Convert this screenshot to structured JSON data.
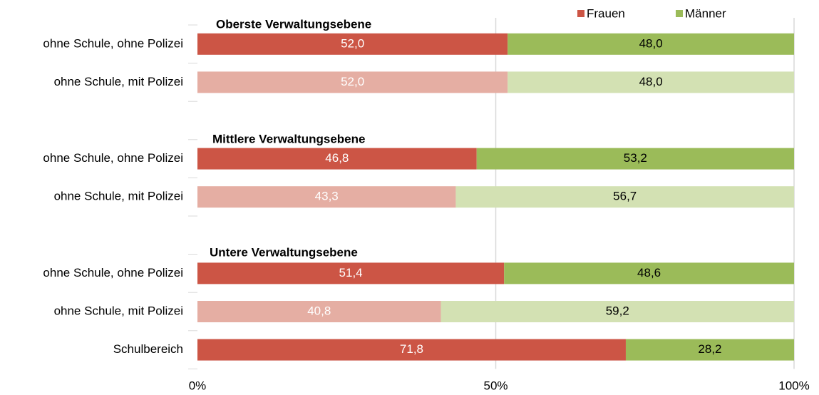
{
  "chart_data": {
    "type": "stacked-barh",
    "annotations": [
      "Oberste Verwaltungsebene",
      "Mittlere Verwaltungsebene",
      "Untere Verwaltungsebene"
    ],
    "categories": [
      "ohne Schule, ohne Polizei",
      "ohne Schule, mit Polizei",
      null,
      "ohne Schule, ohne Polizei",
      "ohne Schule, mit Polizei",
      null,
      "ohne Schule, ohne Polizei",
      "ohne Schule, mit Polizei",
      "Schulbereich"
    ],
    "series": [
      {
        "name": "Frauen",
        "color": "#cc5545",
        "colors": [
          "#cc5545",
          "#e5aea3",
          null,
          "#cc5545",
          "#e5aea3",
          null,
          "#cc5545",
          "#e5aea3",
          "#cc5545"
        ],
        "values": [
          52.0,
          52.0,
          null,
          46.8,
          43.3,
          null,
          51.4,
          40.8,
          71.8
        ],
        "value_labels": [
          "52,0",
          "52,0",
          null,
          "46,8",
          "43,3",
          null,
          "51,4",
          "40,8",
          "71,8"
        ]
      },
      {
        "name": "Männer",
        "color": "#9bbb59",
        "colors": [
          "#9bbb59",
          "#d3e1b3",
          null,
          "#9bbb59",
          "#d3e1b3",
          null,
          "#9bbb59",
          "#d3e1b3",
          "#9bbb59"
        ],
        "values": [
          48.0,
          48.0,
          null,
          53.2,
          56.7,
          null,
          48.6,
          59.2,
          28.2
        ],
        "value_labels": [
          "48,0",
          "48,0",
          null,
          "53,2",
          "56,7",
          null,
          "48,6",
          "59,2",
          "28,2"
        ]
      }
    ],
    "xlim": [
      0,
      100
    ],
    "xticks": [
      {
        "value": 0,
        "label": "0%"
      },
      {
        "value": 50,
        "label": "50%"
      },
      {
        "value": 100,
        "label": "100%"
      }
    ],
    "grid": true,
    "legend": "top-right"
  }
}
